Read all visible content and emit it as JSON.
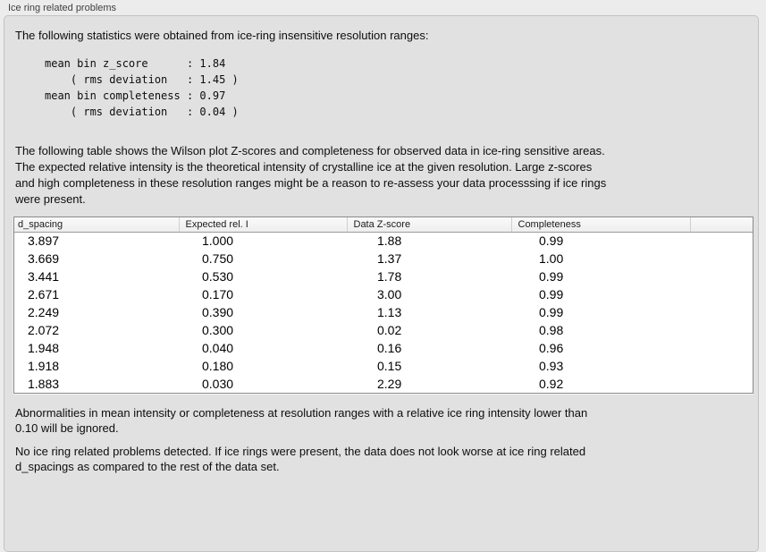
{
  "panel": {
    "title": "Ice ring related problems"
  },
  "intro": "The following statistics were obtained from ice-ring insensitive resolution ranges:",
  "stats_block": "mean bin z_score      : 1.84\n    ( rms deviation   : 1.45 )\nmean bin completeness : 0.97\n    ( rms deviation   : 0.04 )",
  "description": "The following table shows the Wilson plot Z-scores and completeness for observed data in ice-ring sensitive areas.\nThe expected relative intensity is the theoretical intensity of crystalline ice at the given resolution. Large z-scores\nand high completeness in these resolution ranges might be a reason to re-assess your data processsing if ice rings\nwere present.",
  "table": {
    "columns": [
      "d_spacing",
      "Expected rel. I",
      "Data Z-score",
      "Completeness",
      ""
    ],
    "rows": [
      [
        "3.897",
        "1.000",
        "1.88",
        "0.99"
      ],
      [
        "3.669",
        "0.750",
        "1.37",
        "1.00"
      ],
      [
        "3.441",
        "0.530",
        "1.78",
        "0.99"
      ],
      [
        "2.671",
        "0.170",
        "3.00",
        "0.99"
      ],
      [
        "2.249",
        "0.390",
        "1.13",
        "0.99"
      ],
      [
        "2.072",
        "0.300",
        "0.02",
        "0.98"
      ],
      [
        "1.948",
        "0.040",
        "0.16",
        "0.96"
      ],
      [
        "1.918",
        "0.180",
        "0.15",
        "0.93"
      ],
      [
        "1.883",
        "0.030",
        "2.29",
        "0.92"
      ]
    ]
  },
  "note_ignore": "Abnormalities in mean intensity or completeness at resolution ranges with a relative ice ring intensity lower than\n0.10 will be ignored.",
  "conclusion": "No ice ring related problems detected. If ice rings were present, the data does not look worse at ice ring related\nd_spacings as compared to the rest of the data set."
}
